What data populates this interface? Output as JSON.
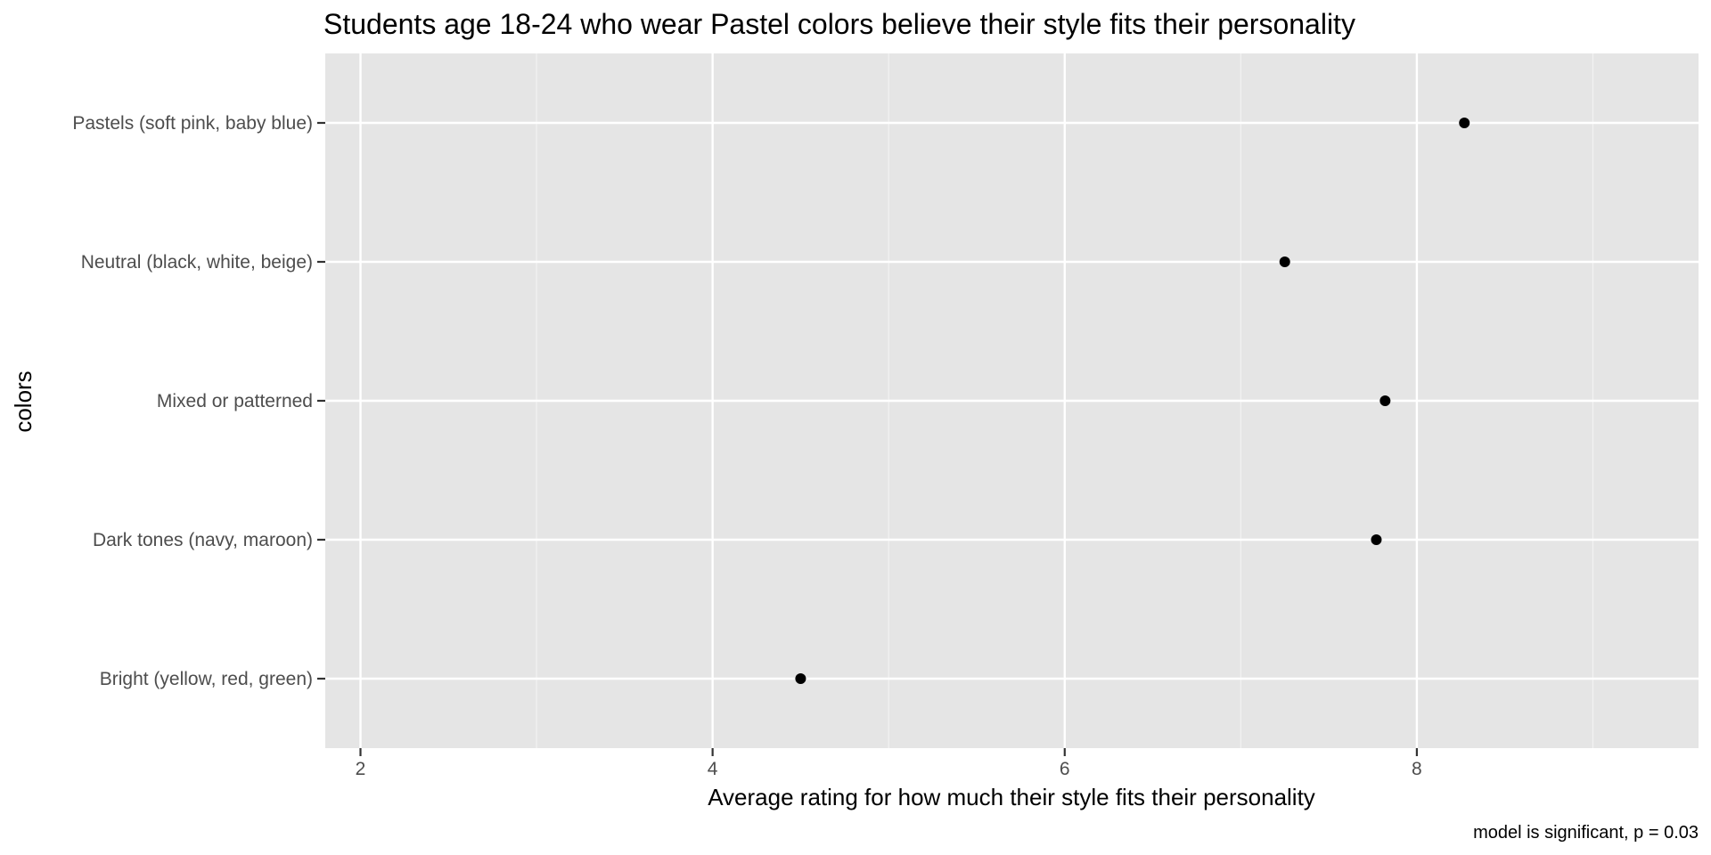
{
  "chart_data": {
    "type": "scatter",
    "title": "Students age 18-24 who wear Pastel colors believe their style fits their personality",
    "xlabel": "Average rating for how much their style fits their personality",
    "ylabel": "colors",
    "caption": "model is significant, p = 0.03",
    "xlim": [
      1.8,
      9.6
    ],
    "x_ticks": [
      2,
      4,
      6,
      8
    ],
    "x_tick_labels": [
      "2",
      "4",
      "6",
      "8"
    ],
    "x_minor_ticks": [
      3,
      5,
      7,
      9
    ],
    "categories": [
      "Pastels (soft pink, baby blue)",
      "Neutral (black, white, beige)",
      "Mixed or patterned",
      "Dark tones (navy, maroon)",
      "Bright (yellow, red, green)"
    ],
    "values": [
      8.27,
      7.25,
      7.82,
      7.77,
      4.5
    ],
    "grid": true,
    "legend": "none",
    "colors": {
      "panel_background": "#e5e5e5",
      "grid_major": "#ffffff",
      "grid_minor": "#f2f2f2",
      "point": "#000000",
      "tick_text": "#4d4d4d",
      "tick_mark": "#333333",
      "text": "#000000"
    }
  }
}
